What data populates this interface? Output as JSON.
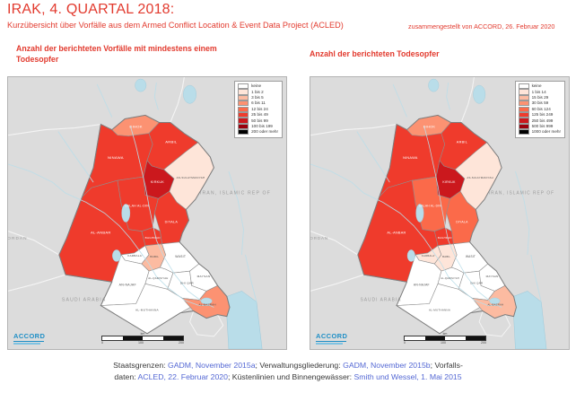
{
  "header": {
    "title": "IRAK, 4. QUARTAL 2018:",
    "subtitle": "Kurzübersicht über Vorfälle aus dem Armed Conflict Location & Event Data Project (ACLED)",
    "credit": "zusammengestellt von ACCORD, 26. Februar 2020"
  },
  "colors": {
    "accent_red": "#e23a2e",
    "link_blue": "#5468d4",
    "neighbor_land": "#dcdcdc",
    "water": "#b9dde9",
    "class_scale": [
      "#ffffff",
      "#fee5d9",
      "#fcbba1",
      "#fc9272",
      "#fb6a4a",
      "#ef3b2c",
      "#cb181d",
      "#99000d",
      "#000000"
    ]
  },
  "maps": [
    {
      "title": "Anzahl der berichteten Vorfälle mit mindestens einem Todesopfer",
      "legend_labels": [
        "keine",
        "1 bis 2",
        "3 bis 5",
        "6 bis 11",
        "12 bis 24",
        "25 bis 49",
        "50 bis 99",
        "100 bis 199",
        "200 oder mehr"
      ],
      "province_classes": {
        "dihok": 3,
        "ninawa": 5,
        "arbil": 5,
        "sulaymaniyah": 1,
        "kirkuk": 6,
        "salahaldin": 5,
        "diyala": 5,
        "baghdad": 5,
        "anbar": 5,
        "karbala": 0,
        "babil": 2,
        "wasit": 0,
        "najaf": 0,
        "qadisiyah": 0,
        "dhiqar": 0,
        "maysan": 0,
        "muthanna": 0,
        "basrah": 3
      }
    },
    {
      "title": "Anzahl der berichteten Todesopfer",
      "legend_labels": [
        "keine",
        "1 bis 14",
        "15 bis 29",
        "30 bis 59",
        "60 bis 124",
        "125 bis 249",
        "250 bis 499",
        "500 bis 999",
        "1000 oder mehr"
      ],
      "province_classes": {
        "dihok": 3,
        "ninawa": 5,
        "arbil": 5,
        "sulaymaniyah": 1,
        "kirkuk": 6,
        "salahaldin": 4,
        "diyala": 4,
        "baghdad": 5,
        "anbar": 5,
        "karbala": 1,
        "babil": 1,
        "wasit": 0,
        "najaf": 0,
        "qadisiyah": 0,
        "dhiqar": 0,
        "maysan": 0,
        "muthanna": 0,
        "basrah": 2
      }
    }
  ],
  "province_labels": {
    "dihok": "DIHOK",
    "ninawa": "NINAWA",
    "arbil": "ARBIL",
    "sulaymaniyah": "AS-SULAYMANIYAH",
    "kirkuk": "KIRKUK",
    "salahaldin": "SALAH AL-DIN",
    "diyala": "DIYALA",
    "baghdad": "BAGHDAD",
    "anbar": "AL-ANBAR",
    "karbala": "KARBALA'",
    "babil": "BABIL",
    "wasit": "WASIT",
    "najaf": "AN-NAJAF",
    "qadisiyah": "AL-QADISIYAH",
    "dhiqar": "DHI QAR",
    "maysan": "MAYSAN",
    "muthanna": "AL-MUTHANNA",
    "basrah": "AL-BASRAH"
  },
  "country_labels": {
    "iran": "IRAN, ISLAMIC REP OF",
    "jordan": "JORDAN",
    "saudi": "SAUDI ARABIA"
  },
  "scalebar": {
    "unit": "km",
    "ticks": [
      "0",
      "100",
      "200"
    ]
  },
  "logo": {
    "text": "ACCORD"
  },
  "footer": {
    "line1": [
      {
        "text": "Staatsgrenzen: ",
        "link": false
      },
      {
        "text": "GADM, November 2015a",
        "link": true
      },
      {
        "text": "; Verwaltungsgliederung: ",
        "link": false
      },
      {
        "text": "GADM, November 2015b",
        "link": true
      },
      {
        "text": "; Vorfalls-",
        "link": false
      }
    ],
    "line2": [
      {
        "text": "daten: ",
        "link": false
      },
      {
        "text": "ACLED, 22. Februar 2020",
        "link": true
      },
      {
        "text": "; Küstenlinien und Binnengewässer: ",
        "link": false
      },
      {
        "text": "Smith und Wessel, 1. Mai 2015",
        "link": true
      }
    ]
  }
}
